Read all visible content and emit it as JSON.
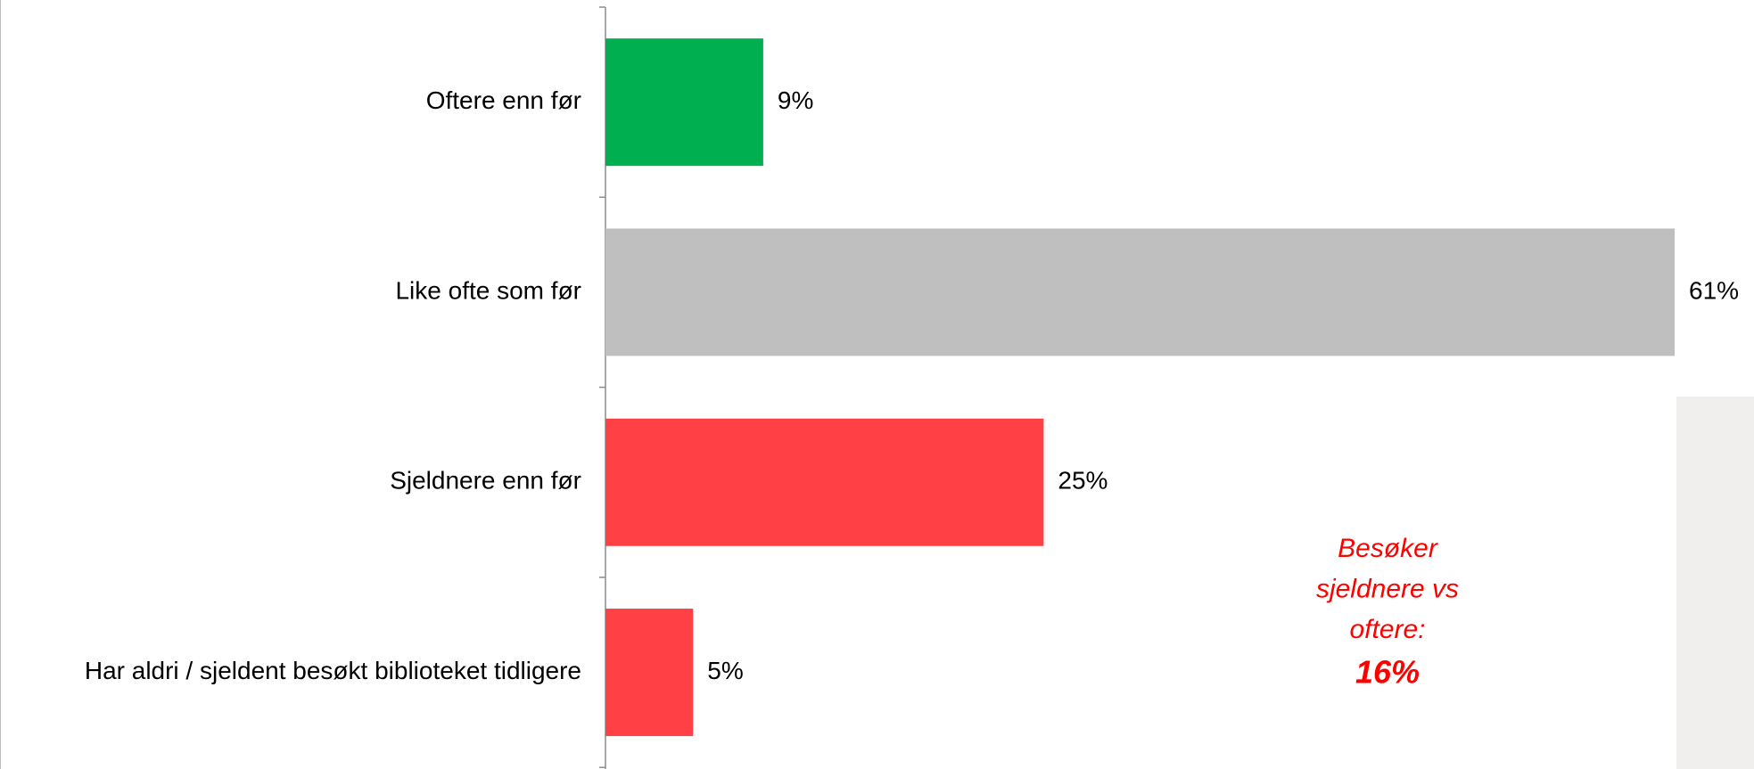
{
  "chart_data": {
    "type": "bar",
    "orientation": "horizontal",
    "categories": [
      "Oftere enn før",
      "Like ofte som før",
      "Sjeldnere enn før",
      "Har aldri / sjeldent besøkt biblioteket tidligere"
    ],
    "values": [
      9,
      61,
      25,
      5
    ],
    "value_labels": [
      "9%",
      "61%",
      "25%",
      "5%"
    ],
    "colors": [
      "#00b050",
      "#bfbfbf",
      "#ff4044",
      "#ff4044"
    ],
    "annotation": {
      "lines": [
        "Besøker",
        "sjeldnere vs",
        "oftere:"
      ],
      "highlight": "16%",
      "color": "#ff0000"
    }
  }
}
